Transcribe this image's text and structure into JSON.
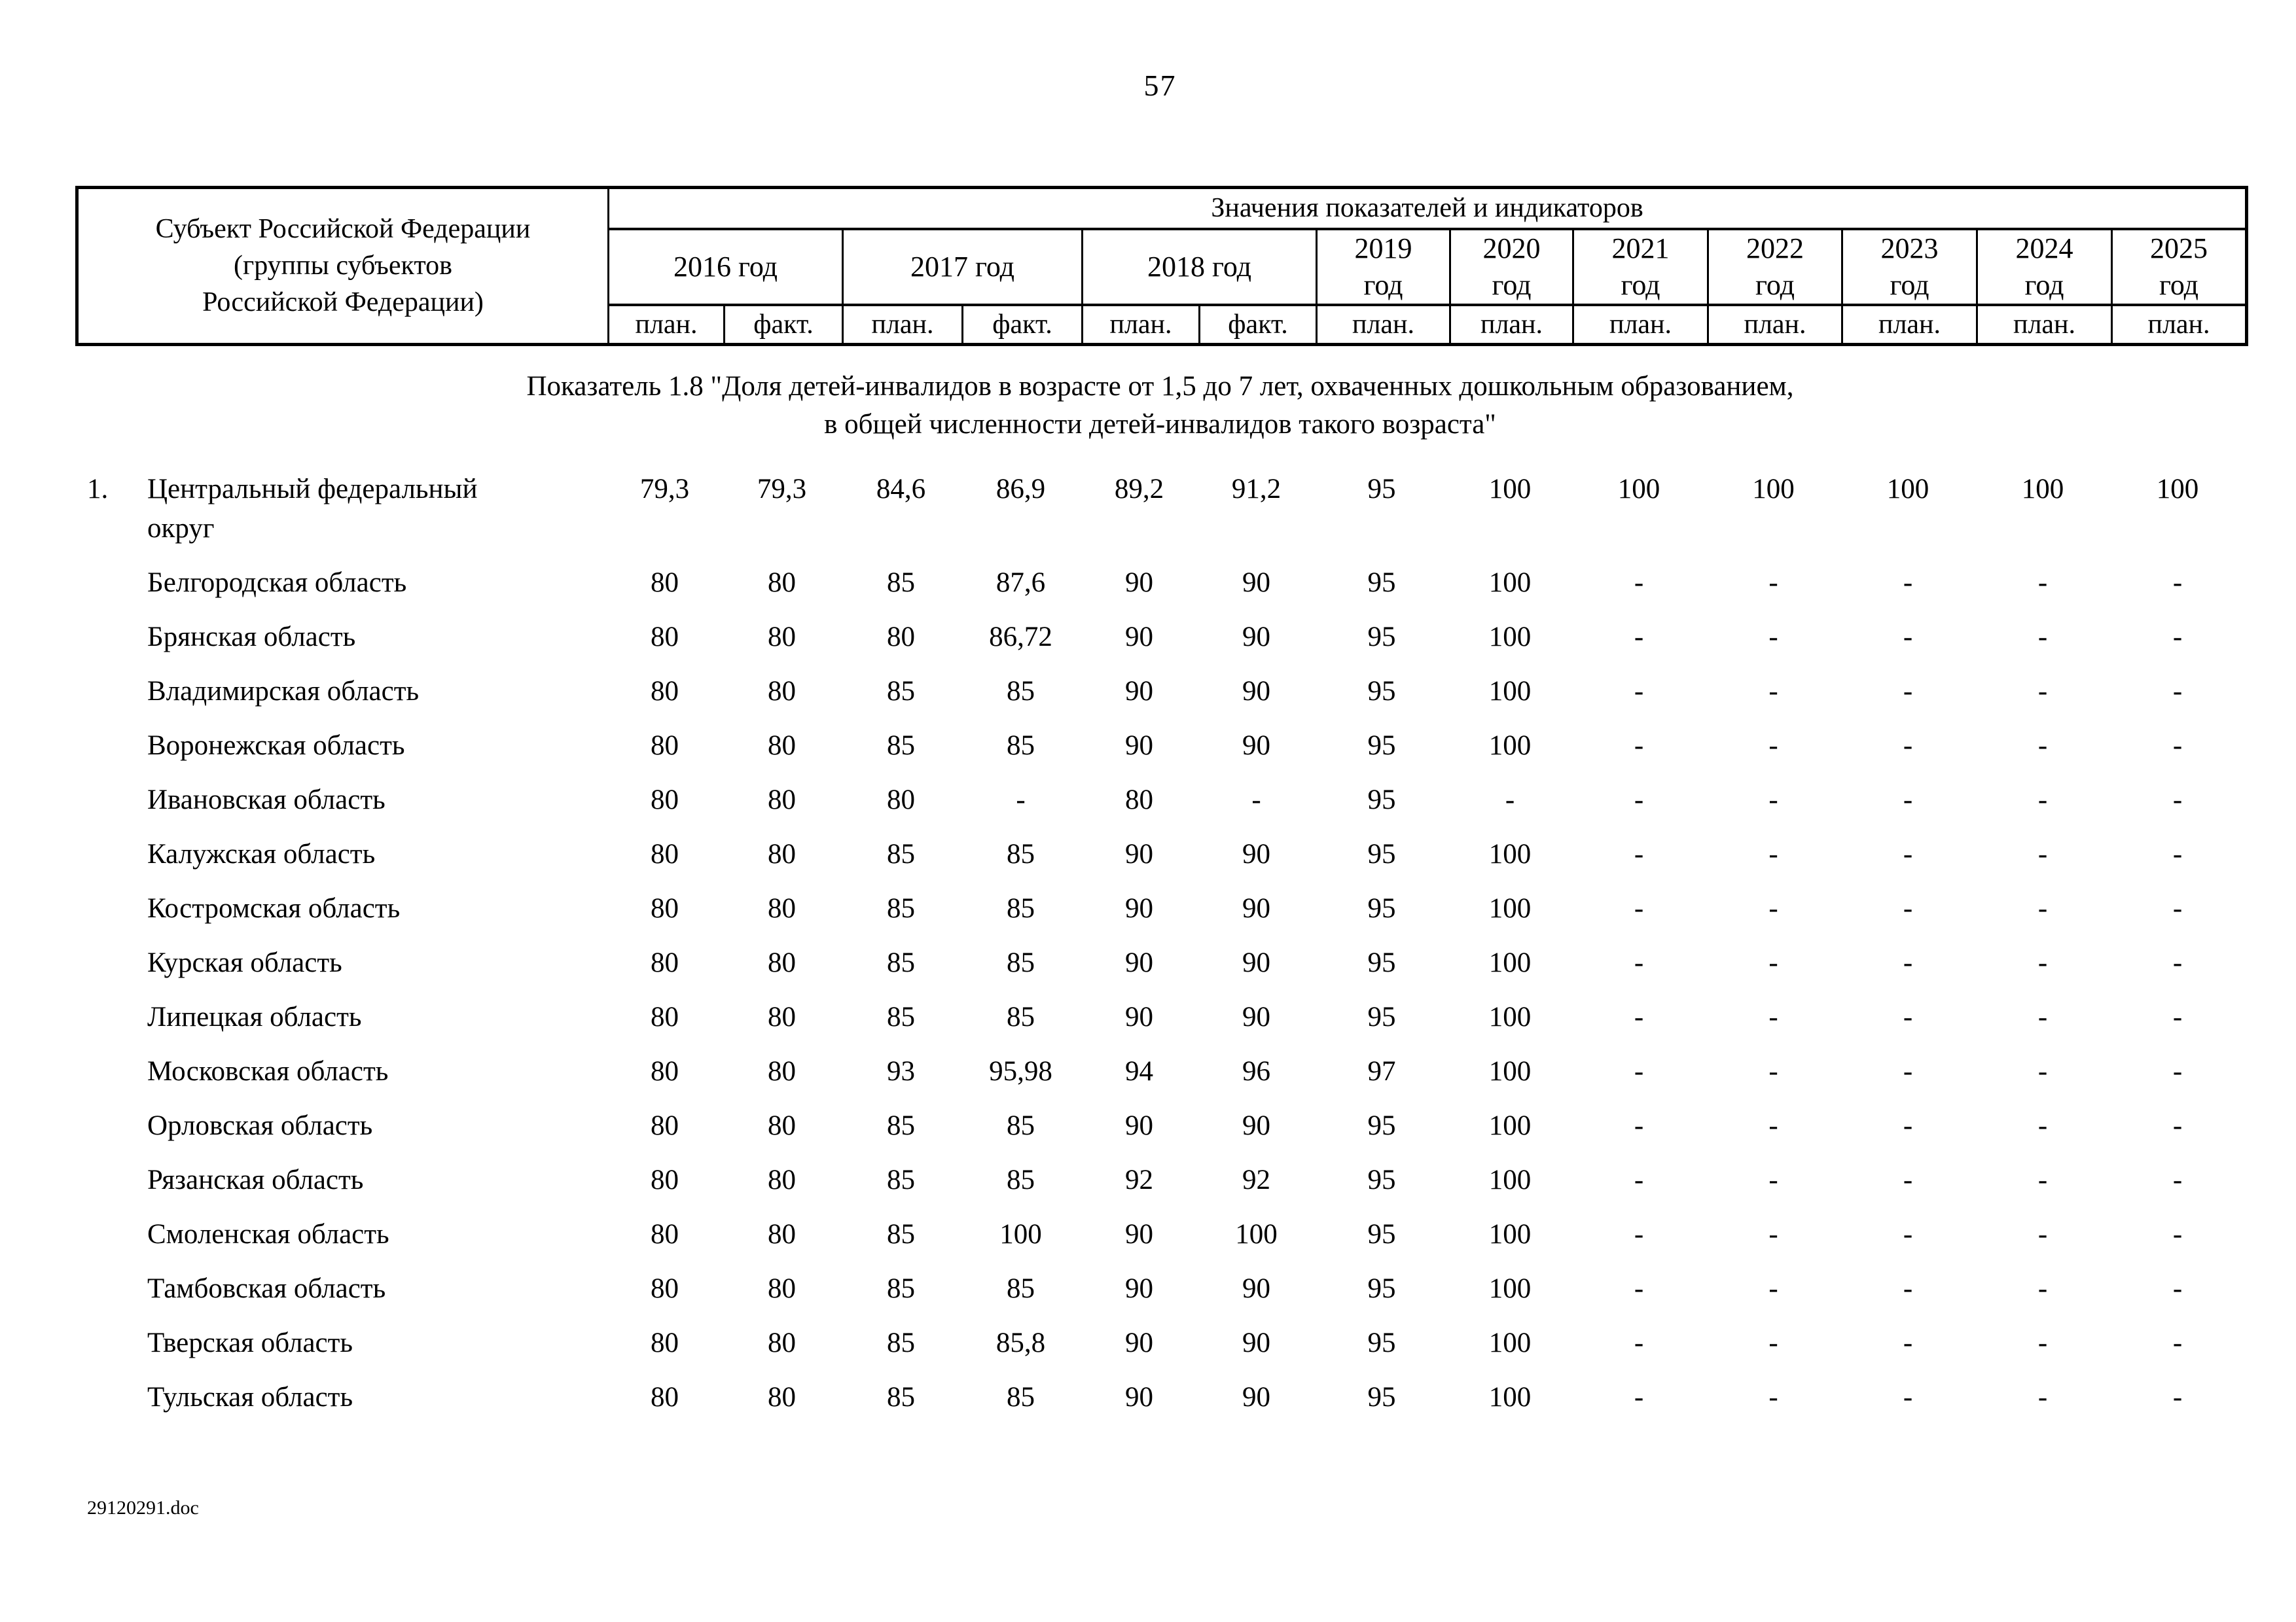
{
  "page": {
    "number": "57",
    "footer": "29120291.doc"
  },
  "table": {
    "subject_header": "Субъект Российской Федерации\n(группы субъектов\nРоссийской Федерации)",
    "values_header": "Значения показателей и индикаторов",
    "year_groups": [
      {
        "label": "2016 год",
        "subs": [
          "план.",
          "факт."
        ]
      },
      {
        "label": "2017 год",
        "subs": [
          "план.",
          "факт."
        ]
      },
      {
        "label": "2018 год",
        "subs": [
          "план.",
          "факт."
        ]
      },
      {
        "label": "2019\nгод",
        "subs": [
          "план."
        ]
      },
      {
        "label": "2020\nгод",
        "subs": [
          "план."
        ]
      },
      {
        "label": "2021\nгод",
        "subs": [
          "план."
        ]
      },
      {
        "label": "2022\nгод",
        "subs": [
          "план."
        ]
      },
      {
        "label": "2023\nгод",
        "subs": [
          "план."
        ]
      },
      {
        "label": "2024\nгод",
        "subs": [
          "план."
        ]
      },
      {
        "label": "2025\nгод",
        "subs": [
          "план."
        ]
      }
    ]
  },
  "section": {
    "line1": "Показатель 1.8 \"Доля детей-инвалидов в возрасте от 1,5 до 7 лет, охваченных дошкольным образованием,",
    "line2": "в общей численности детей-инвалидов такого возраста\""
  },
  "rows": [
    {
      "num": "1.",
      "name": "Центральный федеральный округ",
      "values": [
        "79,3",
        "79,3",
        "84,6",
        "86,9",
        "89,2",
        "91,2",
        "95",
        "100",
        "100",
        "100",
        "100",
        "100",
        "100"
      ]
    },
    {
      "num": "",
      "name": "Белгородская область",
      "values": [
        "80",
        "80",
        "85",
        "87,6",
        "90",
        "90",
        "95",
        "100",
        "-",
        "-",
        "-",
        "-",
        "-"
      ]
    },
    {
      "num": "",
      "name": "Брянская область",
      "values": [
        "80",
        "80",
        "80",
        "86,72",
        "90",
        "90",
        "95",
        "100",
        "-",
        "-",
        "-",
        "-",
        "-"
      ]
    },
    {
      "num": "",
      "name": "Владимирская область",
      "values": [
        "80",
        "80",
        "85",
        "85",
        "90",
        "90",
        "95",
        "100",
        "-",
        "-",
        "-",
        "-",
        "-"
      ]
    },
    {
      "num": "",
      "name": "Воронежская область",
      "values": [
        "80",
        "80",
        "85",
        "85",
        "90",
        "90",
        "95",
        "100",
        "-",
        "-",
        "-",
        "-",
        "-"
      ]
    },
    {
      "num": "",
      "name": "Ивановская область",
      "values": [
        "80",
        "80",
        "80",
        "-",
        "80",
        "-",
        "95",
        "-",
        "-",
        "-",
        "-",
        "-",
        "-"
      ]
    },
    {
      "num": "",
      "name": "Калужская область",
      "values": [
        "80",
        "80",
        "85",
        "85",
        "90",
        "90",
        "95",
        "100",
        "-",
        "-",
        "-",
        "-",
        "-"
      ]
    },
    {
      "num": "",
      "name": "Костромская область",
      "values": [
        "80",
        "80",
        "85",
        "85",
        "90",
        "90",
        "95",
        "100",
        "-",
        "-",
        "-",
        "-",
        "-"
      ]
    },
    {
      "num": "",
      "name": "Курская область",
      "values": [
        "80",
        "80",
        "85",
        "85",
        "90",
        "90",
        "95",
        "100",
        "-",
        "-",
        "-",
        "-",
        "-"
      ]
    },
    {
      "num": "",
      "name": "Липецкая область",
      "values": [
        "80",
        "80",
        "85",
        "85",
        "90",
        "90",
        "95",
        "100",
        "-",
        "-",
        "-",
        "-",
        "-"
      ]
    },
    {
      "num": "",
      "name": "Московская область",
      "values": [
        "80",
        "80",
        "93",
        "95,98",
        "94",
        "96",
        "97",
        "100",
        "-",
        "-",
        "-",
        "-",
        "-"
      ]
    },
    {
      "num": "",
      "name": "Орловская область",
      "values": [
        "80",
        "80",
        "85",
        "85",
        "90",
        "90",
        "95",
        "100",
        "-",
        "-",
        "-",
        "-",
        "-"
      ]
    },
    {
      "num": "",
      "name": "Рязанская область",
      "values": [
        "80",
        "80",
        "85",
        "85",
        "92",
        "92",
        "95",
        "100",
        "-",
        "-",
        "-",
        "-",
        "-"
      ]
    },
    {
      "num": "",
      "name": "Смоленская область",
      "values": [
        "80",
        "80",
        "85",
        "100",
        "90",
        "100",
        "95",
        "100",
        "-",
        "-",
        "-",
        "-",
        "-"
      ]
    },
    {
      "num": "",
      "name": "Тамбовская область",
      "values": [
        "80",
        "80",
        "85",
        "85",
        "90",
        "90",
        "95",
        "100",
        "-",
        "-",
        "-",
        "-",
        "-"
      ]
    },
    {
      "num": "",
      "name": "Тверская область",
      "values": [
        "80",
        "80",
        "85",
        "85,8",
        "90",
        "90",
        "95",
        "100",
        "-",
        "-",
        "-",
        "-",
        "-"
      ]
    },
    {
      "num": "",
      "name": "Тульская область",
      "values": [
        "80",
        "80",
        "85",
        "85",
        "90",
        "90",
        "95",
        "100",
        "-",
        "-",
        "-",
        "-",
        "-"
      ]
    }
  ]
}
